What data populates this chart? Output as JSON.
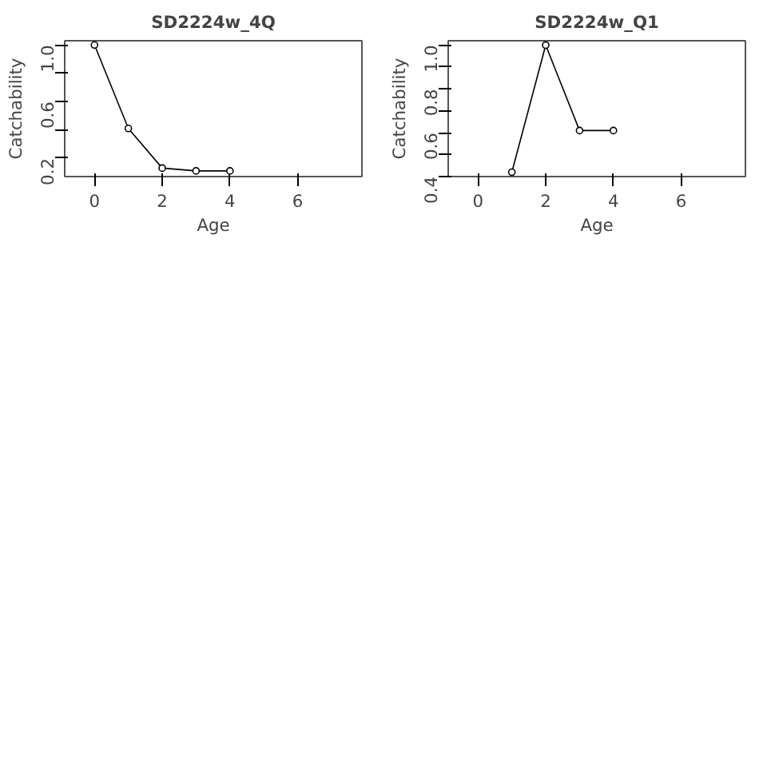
{
  "chart_data": [
    {
      "type": "line",
      "title": "SD2224w_4Q",
      "xlabel": "Age",
      "ylabel": "Catchability",
      "x": [
        0,
        1,
        2,
        3,
        4
      ],
      "series": [
        {
          "color": "#000000",
          "values": [
            1.0,
            0.41,
            0.13,
            0.11,
            0.11
          ]
        }
      ],
      "xlim": [
        -0.88,
        7.9
      ],
      "xticks": [
        0,
        2,
        4,
        6
      ],
      "ylim": [
        0.07,
        1.03
      ],
      "yticks": [
        0.2,
        {
          "value": 0.4,
          "label": null
        },
        0.6,
        {
          "value": 0.8,
          "label": null
        },
        {
          "value": 1,
          "label": "1.0"
        }
      ],
      "marker": "circle"
    },
    {
      "type": "line",
      "title": "SD2224w_Q1",
      "xlabel": "Age",
      "ylabel": "Catchability",
      "x": [
        1,
        2,
        3,
        4
      ],
      "series": [
        {
          "color": "#000000",
          "values": [
            0.42,
            1.0,
            0.61,
            0.61
          ]
        }
      ],
      "xlim": [
        -0.88,
        7.9
      ],
      "xticks": [
        0,
        2,
        4,
        6
      ],
      "ylim": [
        0.4,
        1.02
      ],
      "yticks": [
        0.4,
        {
          "value": 0.5,
          "label": null
        },
        0.6,
        {
          "value": 0.7,
          "label": null
        },
        0.8,
        {
          "value": 0.9,
          "label": null
        },
        {
          "value": 1,
          "label": "1.0"
        }
      ],
      "marker": "circle"
    }
  ]
}
